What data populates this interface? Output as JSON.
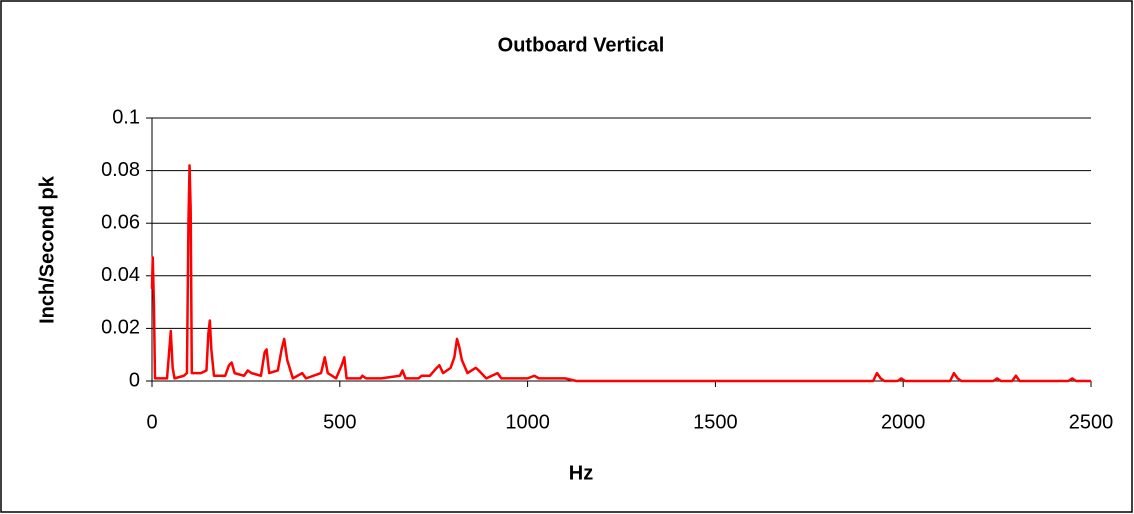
{
  "chart_data": {
    "type": "line",
    "title": "Outboard Vertical",
    "x_label": "Hz",
    "y_label": "Inch/Second pk",
    "x": [
      0,
      2,
      5,
      8,
      40,
      45,
      50,
      55,
      60,
      85,
      93,
      97,
      100,
      103,
      106,
      130,
      145,
      150,
      154,
      158,
      165,
      195,
      205,
      212,
      220,
      245,
      255,
      265,
      290,
      300,
      305,
      312,
      335,
      345,
      352,
      360,
      375,
      400,
      410,
      450,
      460,
      468,
      490,
      505,
      512,
      518,
      555,
      560,
      570,
      610,
      660,
      667,
      675,
      710,
      718,
      740,
      758,
      765,
      775,
      795,
      805,
      812,
      818,
      825,
      840,
      862,
      870,
      890,
      920,
      930,
      1000,
      1018,
      1030,
      1100,
      1130,
      1920,
      1930,
      1940,
      1950,
      1985,
      1995,
      2005,
      2125,
      2135,
      2145,
      2155,
      2240,
      2250,
      2260,
      2290,
      2300,
      2310,
      2440,
      2450,
      2460,
      2500
    ],
    "series": [
      {
        "color": "#ff0000",
        "values": [
          0.035,
          0.047,
          0.03,
          0.001,
          0.001,
          0.01,
          0.019,
          0.005,
          0.001,
          0.002,
          0.003,
          0.06,
          0.082,
          0.065,
          0.003,
          0.003,
          0.004,
          0.018,
          0.023,
          0.012,
          0.002,
          0.002,
          0.006,
          0.007,
          0.003,
          0.002,
          0.004,
          0.003,
          0.002,
          0.011,
          0.012,
          0.003,
          0.004,
          0.012,
          0.016,
          0.008,
          0.001,
          0.003,
          0.001,
          0.003,
          0.009,
          0.003,
          0.001,
          0.006,
          0.009,
          0.001,
          0.001,
          0.002,
          0.001,
          0.001,
          0.002,
          0.004,
          0.001,
          0.001,
          0.002,
          0.002,
          0.005,
          0.006,
          0.003,
          0.005,
          0.009,
          0.016,
          0.013,
          0.008,
          0.003,
          0.005,
          0.004,
          0.001,
          0.003,
          0.001,
          0.001,
          0.002,
          0.001,
          0.001,
          0,
          0,
          0.003,
          0.001,
          0,
          0,
          0.001,
          0,
          0,
          0.003,
          0.001,
          0,
          0,
          0.001,
          0,
          0,
          0.002,
          0,
          0,
          0.001,
          0,
          0
        ]
      }
    ],
    "xlim": [
      0,
      2500
    ],
    "xticks": [
      0,
      500,
      1000,
      1500,
      2000,
      2500
    ],
    "ylim": [
      0,
      0.1
    ],
    "yticks": [
      0,
      0.02,
      0.04,
      0.06,
      0.08,
      0.1
    ],
    "grid": true
  }
}
